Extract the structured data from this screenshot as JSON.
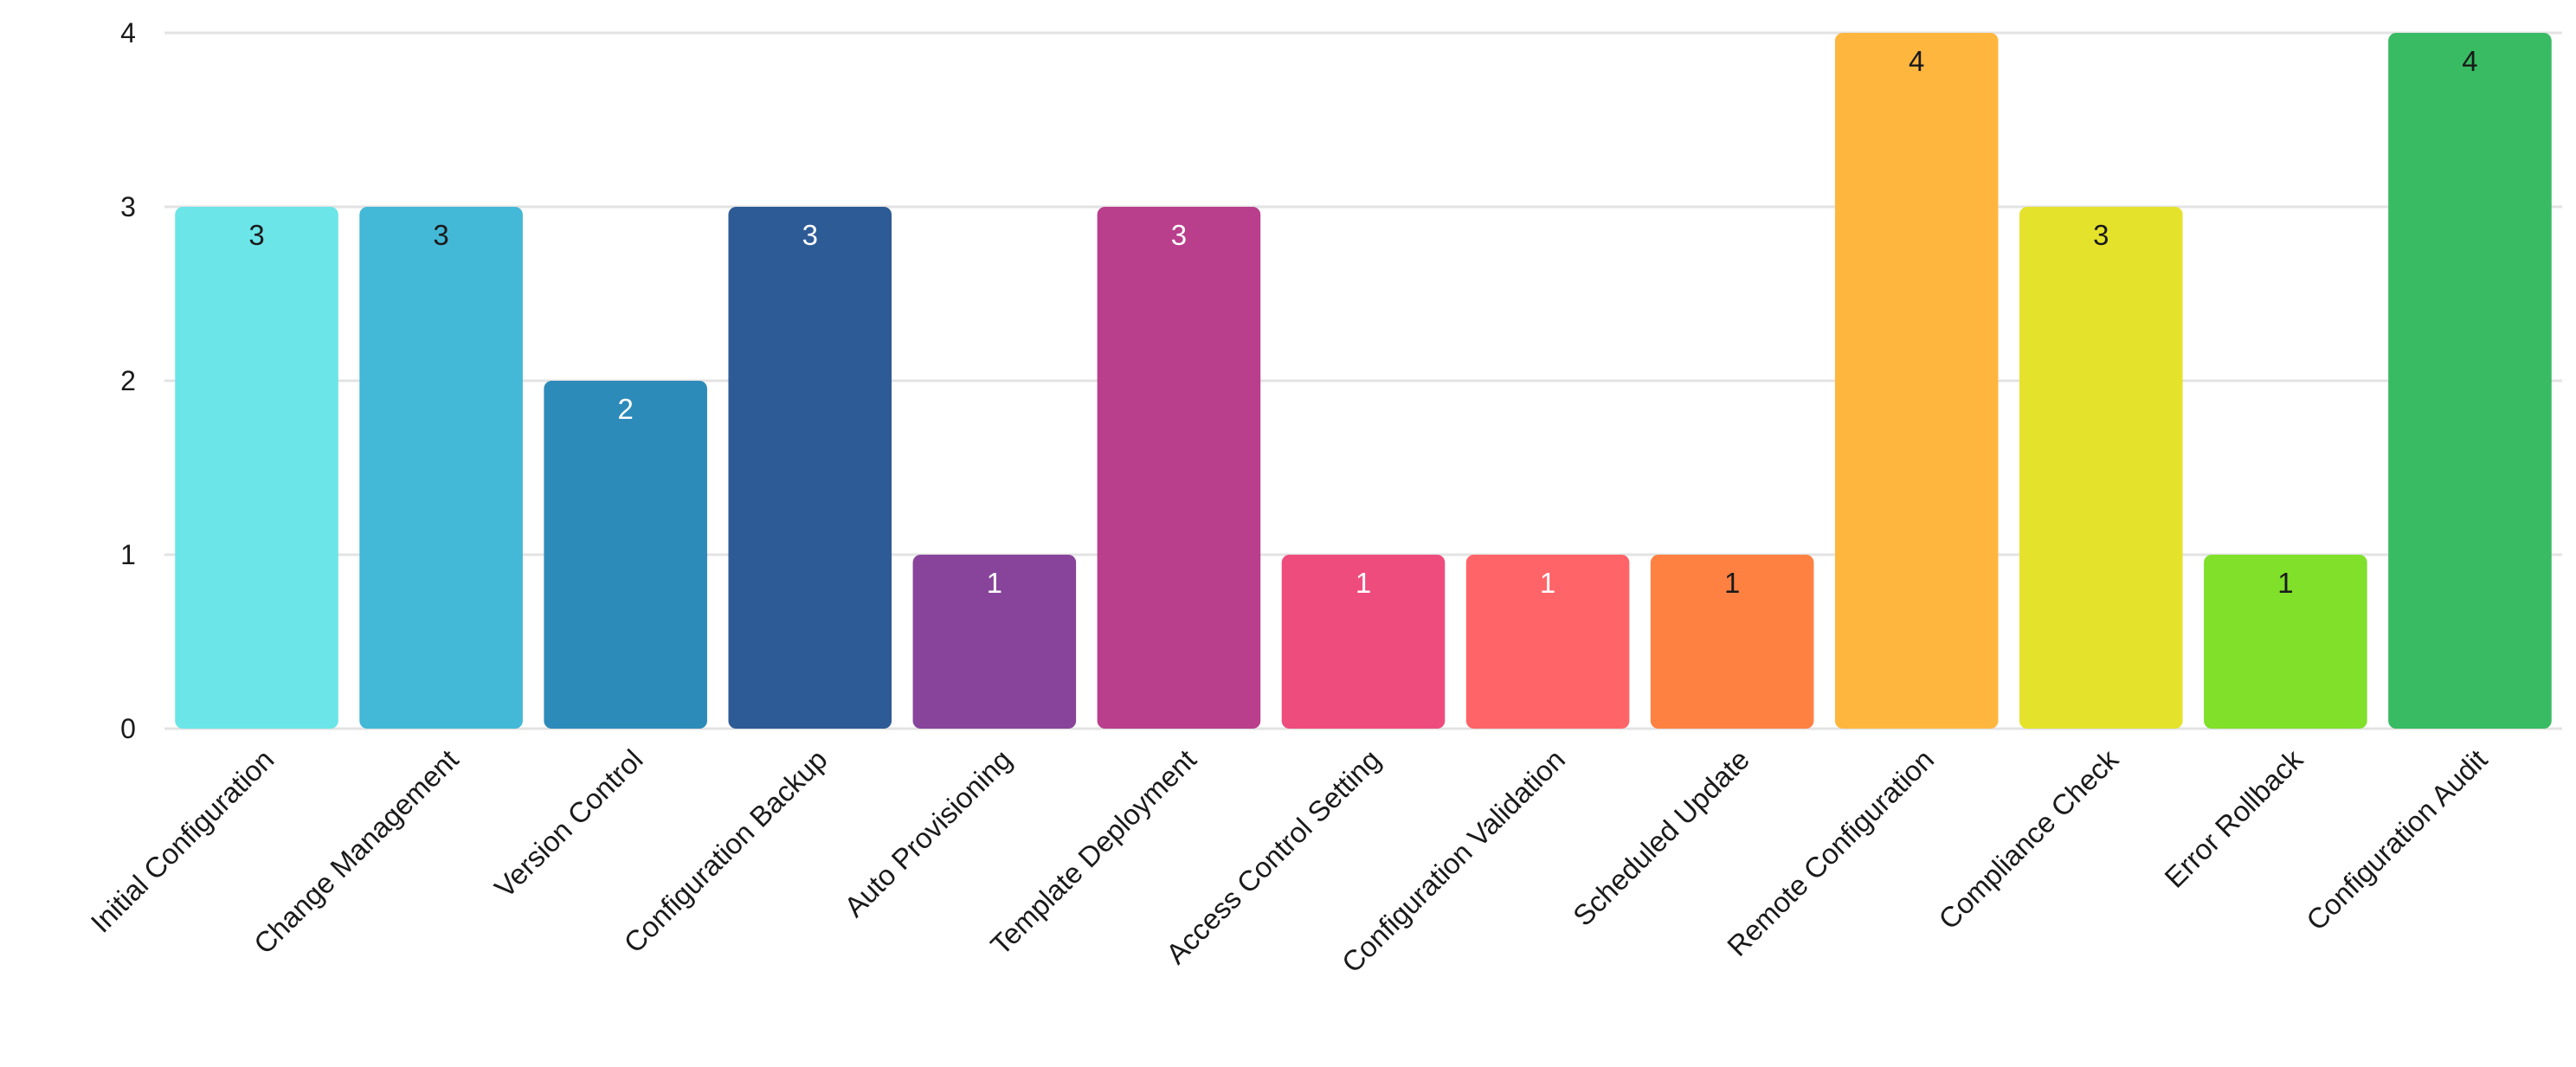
{
  "chart_data": {
    "type": "bar",
    "title": "",
    "xlabel": "",
    "ylabel": "",
    "ylim": [
      0,
      4
    ],
    "y_ticks": [
      "0",
      "1",
      "2",
      "3",
      "4"
    ],
    "grid": true,
    "legend": "none",
    "categories": [
      "Initial Configuration",
      "Change Management",
      "Version Control",
      "Configuration Backup",
      "Auto Provisioning",
      "Template Deployment",
      "Access Control Setting",
      "Configuration Validation",
      "Scheduled Update",
      "Remote Configuration",
      "Compliance Check",
      "Error Rollback",
      "Configuration Audit"
    ],
    "values": [
      3,
      3,
      2,
      3,
      1,
      3,
      1,
      1,
      1,
      4,
      3,
      1,
      4
    ],
    "colors": [
      "#6be5e8",
      "#43b8d7",
      "#2d8bba",
      "#2d5b95",
      "#87449a",
      "#b93e8c",
      "#ef4c7e",
      "#ff6468",
      "#ff8142",
      "#ffb63e",
      "#e5e22b",
      "#80e02a",
      "#38bb62"
    ],
    "label_colors": [
      "#1a1a1a",
      "#1a1a1a",
      "#ffffff",
      "#ffffff",
      "#ffffff",
      "#ffffff",
      "#ffffff",
      "#ffffff",
      "#1a1a1a",
      "#1a1a1a",
      "#1a1a1a",
      "#1a1a1a",
      "#1a1a1a"
    ]
  }
}
